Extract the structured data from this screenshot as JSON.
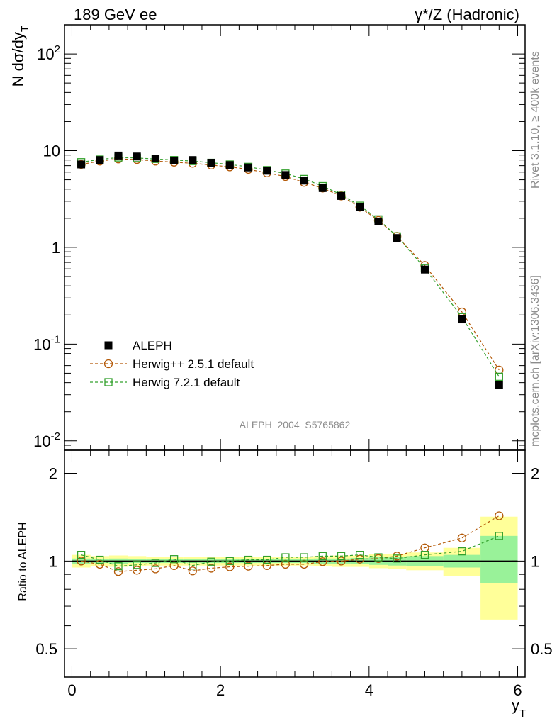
{
  "header": {
    "energy": "189 GeV ee",
    "process": "γ*/Z (Hadronic)"
  },
  "side_labels": {
    "rivet": "Rivet 3.1.10, ≥ 400k events",
    "mcplots": "mcplots.cern.ch [arXiv:1306.3436]"
  },
  "watermark": "ALEPH_2004_S5765862",
  "chart_data": [
    {
      "type": "scatter",
      "panel": "main",
      "ylabel": "N dσ/dy_T",
      "yscale": "log",
      "ylim": [
        0.008,
        200
      ],
      "xlim": [
        -0.1,
        6.1
      ],
      "ytick_labels": [
        "10^-2",
        "10^-1",
        "1",
        "10",
        "10^2"
      ],
      "legend_position": "lower-left",
      "legend": [
        "ALEPH",
        "Herwig++ 2.5.1 default",
        "Herwig 7.2.1 default"
      ],
      "x": [
        0.125,
        0.375,
        0.625,
        0.875,
        1.125,
        1.375,
        1.625,
        1.875,
        2.125,
        2.375,
        2.625,
        2.875,
        3.125,
        3.375,
        3.625,
        3.875,
        4.125,
        4.375,
        4.75,
        5.25,
        5.75
      ],
      "series": [
        {
          "name": "ALEPH",
          "marker": "filled-square",
          "color": "#000000",
          "values": [
            7.2,
            8.0,
            8.9,
            8.7,
            8.3,
            7.9,
            8.0,
            7.5,
            7.1,
            6.7,
            6.2,
            5.6,
            4.9,
            4.1,
            3.4,
            2.6,
            1.85,
            1.25,
            0.59,
            0.18,
            0.038
          ]
        },
        {
          "name": "Herwig++ 2.5.1 default",
          "marker": "open-circle",
          "color": "#b35806",
          "values": [
            7.2,
            7.8,
            8.2,
            8.1,
            7.8,
            7.6,
            7.4,
            7.1,
            6.8,
            6.4,
            5.9,
            5.4,
            4.7,
            4.1,
            3.4,
            2.6,
            1.9,
            1.3,
            0.65,
            0.215,
            0.054
          ]
        },
        {
          "name": "Herwig 7.2.1 default",
          "marker": "open-square",
          "color": "#33a02c",
          "values": [
            7.6,
            8.1,
            8.5,
            8.4,
            8.2,
            8.0,
            7.8,
            7.5,
            7.2,
            6.8,
            6.3,
            5.8,
            5.1,
            4.3,
            3.5,
            2.7,
            1.95,
            1.3,
            0.61,
            0.19,
            0.046
          ]
        }
      ]
    },
    {
      "type": "scatter",
      "panel": "ratio",
      "ylabel": "Ratio to ALEPH",
      "xlabel": "y_T",
      "ylim": [
        0.4,
        2.4
      ],
      "xlim": [
        -0.1,
        6.1
      ],
      "xtick_labels": [
        "0",
        "2",
        "4",
        "6"
      ],
      "ytick_labels": [
        "0.5",
        "1",
        "2"
      ],
      "x": [
        0.125,
        0.375,
        0.625,
        0.875,
        1.125,
        1.375,
        1.625,
        1.875,
        2.125,
        2.375,
        2.625,
        2.875,
        3.125,
        3.375,
        3.625,
        3.875,
        4.125,
        4.375,
        4.75,
        5.25,
        5.75
      ],
      "bin_edges": [
        0.0,
        0.25,
        0.5,
        0.75,
        1.0,
        1.25,
        1.5,
        1.75,
        2.0,
        2.25,
        2.5,
        2.75,
        3.0,
        3.25,
        3.5,
        3.75,
        4.0,
        4.25,
        4.5,
        5.0,
        5.5,
        6.0
      ],
      "band_stat_lo": [
        0.98,
        0.985,
        0.98,
        0.985,
        0.985,
        0.985,
        0.985,
        0.985,
        0.985,
        0.985,
        0.985,
        0.985,
        0.985,
        0.98,
        0.98,
        0.975,
        0.97,
        0.965,
        0.96,
        0.95,
        0.84
      ],
      "band_stat_hi": [
        1.02,
        1.015,
        1.02,
        1.015,
        1.015,
        1.015,
        1.015,
        1.015,
        1.015,
        1.015,
        1.015,
        1.015,
        1.015,
        1.02,
        1.02,
        1.025,
        1.03,
        1.035,
        1.04,
        1.05,
        1.22
      ],
      "band_total_lo": [
        0.95,
        0.96,
        0.955,
        0.96,
        0.965,
        0.965,
        0.965,
        0.965,
        0.965,
        0.965,
        0.965,
        0.965,
        0.965,
        0.96,
        0.955,
        0.955,
        0.945,
        0.94,
        0.93,
        0.89,
        0.63
      ],
      "band_total_hi": [
        1.05,
        1.04,
        1.045,
        1.04,
        1.035,
        1.035,
        1.035,
        1.035,
        1.035,
        1.035,
        1.035,
        1.035,
        1.035,
        1.04,
        1.045,
        1.045,
        1.055,
        1.06,
        1.07,
        1.11,
        1.42
      ],
      "series": [
        {
          "name": "Herwig++ 2.5.1 default",
          "marker": "open-circle",
          "color": "#b35806",
          "values": [
            1.0,
            0.975,
            0.92,
            0.93,
            0.94,
            0.965,
            0.925,
            0.945,
            0.955,
            0.96,
            0.965,
            0.975,
            0.975,
            0.995,
            1.0,
            1.015,
            1.02,
            1.04,
            1.11,
            1.2,
            1.43
          ]
        },
        {
          "name": "Herwig 7.2.1 default",
          "marker": "open-square",
          "color": "#33a02c",
          "values": [
            1.05,
            1.01,
            0.96,
            0.97,
            0.985,
            1.015,
            0.965,
            0.995,
            1.0,
            1.01,
            1.01,
            1.03,
            1.03,
            1.04,
            1.04,
            1.05,
            1.03,
            1.02,
            1.05,
            1.08,
            1.22
          ]
        }
      ]
    }
  ],
  "colors": {
    "data": "#000000",
    "herwigpp": "#b35806",
    "herwig7": "#33a02c",
    "band_total": "#ffff99",
    "band_stat": "#99f299"
  }
}
